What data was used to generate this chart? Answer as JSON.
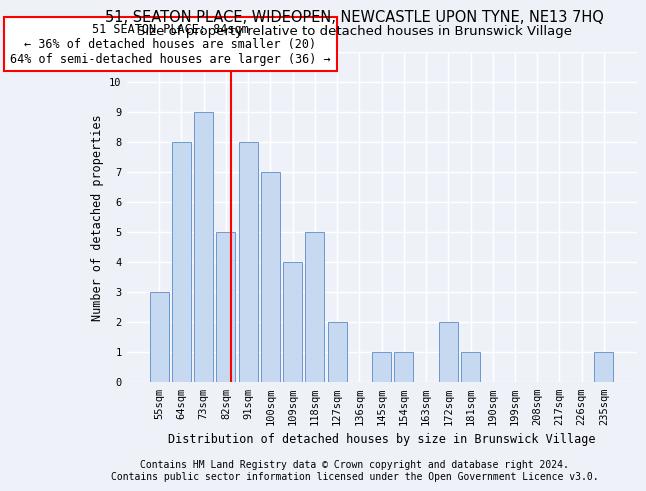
{
  "title": "51, SEATON PLACE, WIDEOPEN, NEWCASTLE UPON TYNE, NE13 7HQ",
  "subtitle": "Size of property relative to detached houses in Brunswick Village",
  "xlabel": "Distribution of detached houses by size in Brunswick Village",
  "ylabel": "Number of detached properties",
  "categories": [
    "55sqm",
    "64sqm",
    "73sqm",
    "82sqm",
    "91sqm",
    "100sqm",
    "109sqm",
    "118sqm",
    "127sqm",
    "136sqm",
    "145sqm",
    "154sqm",
    "163sqm",
    "172sqm",
    "181sqm",
    "190sqm",
    "199sqm",
    "208sqm",
    "217sqm",
    "226sqm",
    "235sqm"
  ],
  "values": [
    3,
    8,
    9,
    5,
    8,
    7,
    4,
    5,
    2,
    0,
    1,
    1,
    0,
    2,
    1,
    0,
    0,
    0,
    0,
    0,
    1
  ],
  "bar_color": "#c6d9f0",
  "bar_edgecolor": "#5b8cc8",
  "bar_width": 0.85,
  "ylim": [
    0,
    11
  ],
  "yticks": [
    0,
    1,
    2,
    3,
    4,
    5,
    6,
    7,
    8,
    9,
    10,
    11
  ],
  "annotation_text": "51 SEATON PLACE: 84sqm\n← 36% of detached houses are smaller (20)\n64% of semi-detached houses are larger (36) →",
  "footer1": "Contains HM Land Registry data © Crown copyright and database right 2024.",
  "footer2": "Contains public sector information licensed under the Open Government Licence v3.0.",
  "background_color": "#eef2f8",
  "grid_color": "#ffffff",
  "title_fontsize": 10.5,
  "subtitle_fontsize": 9.5,
  "axis_label_fontsize": 8.5,
  "tick_fontsize": 7.5,
  "annotation_fontsize": 8.5,
  "footer_fontsize": 7
}
